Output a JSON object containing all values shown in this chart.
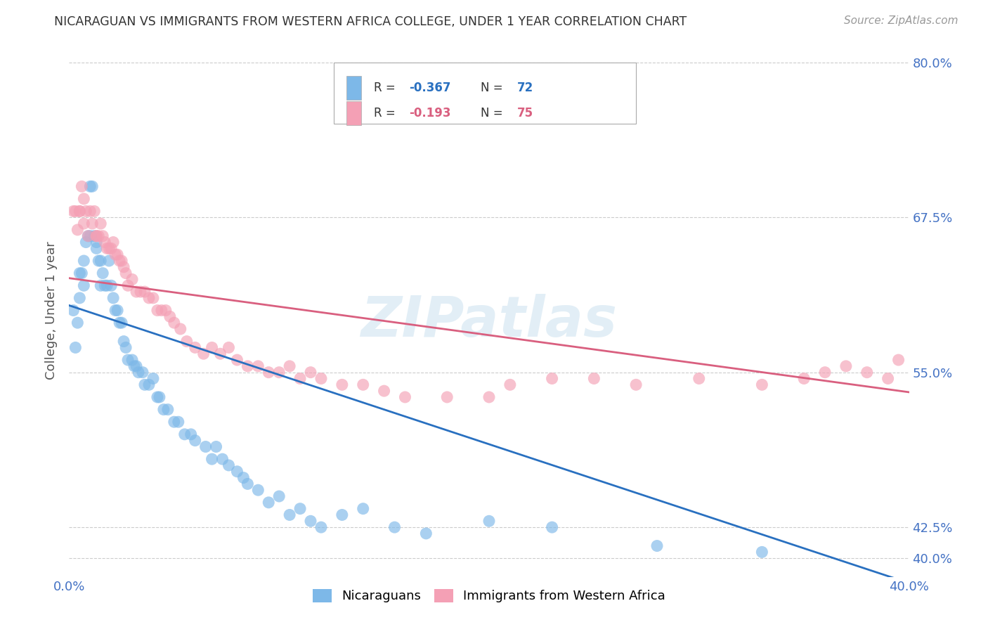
{
  "title": "NICARAGUAN VS IMMIGRANTS FROM WESTERN AFRICA COLLEGE, UNDER 1 YEAR CORRELATION CHART",
  "source": "Source: ZipAtlas.com",
  "ylabel": "College, Under 1 year",
  "xlim": [
    0.0,
    0.4
  ],
  "ylim": [
    0.385,
    0.815
  ],
  "ytick_pos": [
    0.4,
    0.425,
    0.55,
    0.675,
    0.8
  ],
  "ytick_labels": [
    "40.0%",
    "42.5%",
    "55.0%",
    "67.5%",
    "80.0%"
  ],
  "xtick_pos": [
    0.0,
    0.1,
    0.2,
    0.3,
    0.4
  ],
  "xtick_labels": [
    "0.0%",
    "",
    "",
    "",
    "40.0%"
  ],
  "blue_R": -0.367,
  "blue_N": 72,
  "pink_R": -0.193,
  "pink_N": 75,
  "blue_color": "#7db8e8",
  "pink_color": "#f4a0b5",
  "blue_line_color": "#2970c0",
  "pink_line_color": "#d95f7f",
  "legend_blue_label": "Nicaraguans",
  "legend_pink_label": "Immigrants from Western Africa",
  "watermark": "ZIPatlas",
  "background_color": "#ffffff",
  "grid_color": "#cccccc",
  "blue_line_x0": 0.0,
  "blue_line_y0": 0.604,
  "blue_line_x1": 0.4,
  "blue_line_y1": 0.38,
  "pink_line_x0": 0.0,
  "pink_line_y0": 0.626,
  "pink_line_x1": 0.4,
  "pink_line_y1": 0.534,
  "blue_x": [
    0.002,
    0.003,
    0.004,
    0.005,
    0.005,
    0.006,
    0.007,
    0.007,
    0.008,
    0.009,
    0.01,
    0.01,
    0.011,
    0.012,
    0.013,
    0.013,
    0.014,
    0.015,
    0.015,
    0.016,
    0.017,
    0.018,
    0.019,
    0.02,
    0.021,
    0.022,
    0.023,
    0.024,
    0.025,
    0.026,
    0.027,
    0.028,
    0.03,
    0.031,
    0.032,
    0.033,
    0.035,
    0.036,
    0.038,
    0.04,
    0.042,
    0.043,
    0.045,
    0.047,
    0.05,
    0.052,
    0.055,
    0.058,
    0.06,
    0.065,
    0.068,
    0.07,
    0.073,
    0.076,
    0.08,
    0.083,
    0.085,
    0.09,
    0.095,
    0.1,
    0.105,
    0.11,
    0.115,
    0.12,
    0.13,
    0.14,
    0.155,
    0.17,
    0.2,
    0.23,
    0.28,
    0.33
  ],
  "blue_y": [
    0.6,
    0.57,
    0.59,
    0.61,
    0.63,
    0.63,
    0.64,
    0.62,
    0.655,
    0.66,
    0.66,
    0.7,
    0.7,
    0.66,
    0.655,
    0.65,
    0.64,
    0.64,
    0.62,
    0.63,
    0.62,
    0.62,
    0.64,
    0.62,
    0.61,
    0.6,
    0.6,
    0.59,
    0.59,
    0.575,
    0.57,
    0.56,
    0.56,
    0.555,
    0.555,
    0.55,
    0.55,
    0.54,
    0.54,
    0.545,
    0.53,
    0.53,
    0.52,
    0.52,
    0.51,
    0.51,
    0.5,
    0.5,
    0.495,
    0.49,
    0.48,
    0.49,
    0.48,
    0.475,
    0.47,
    0.465,
    0.46,
    0.455,
    0.445,
    0.45,
    0.435,
    0.44,
    0.43,
    0.425,
    0.435,
    0.44,
    0.425,
    0.42,
    0.43,
    0.425,
    0.41,
    0.405
  ],
  "pink_x": [
    0.002,
    0.003,
    0.004,
    0.005,
    0.005,
    0.006,
    0.007,
    0.007,
    0.008,
    0.009,
    0.01,
    0.011,
    0.012,
    0.013,
    0.013,
    0.014,
    0.015,
    0.016,
    0.017,
    0.018,
    0.019,
    0.02,
    0.021,
    0.022,
    0.023,
    0.024,
    0.025,
    0.026,
    0.027,
    0.028,
    0.03,
    0.032,
    0.034,
    0.036,
    0.038,
    0.04,
    0.042,
    0.044,
    0.046,
    0.048,
    0.05,
    0.053,
    0.056,
    0.06,
    0.064,
    0.068,
    0.072,
    0.076,
    0.08,
    0.085,
    0.09,
    0.095,
    0.1,
    0.105,
    0.11,
    0.115,
    0.12,
    0.13,
    0.14,
    0.15,
    0.16,
    0.18,
    0.2,
    0.21,
    0.23,
    0.25,
    0.27,
    0.3,
    0.33,
    0.35,
    0.36,
    0.37,
    0.38,
    0.39,
    0.395
  ],
  "pink_y": [
    0.68,
    0.68,
    0.665,
    0.68,
    0.68,
    0.7,
    0.69,
    0.67,
    0.68,
    0.66,
    0.68,
    0.67,
    0.68,
    0.66,
    0.66,
    0.66,
    0.67,
    0.66,
    0.655,
    0.65,
    0.65,
    0.65,
    0.655,
    0.645,
    0.645,
    0.64,
    0.64,
    0.635,
    0.63,
    0.62,
    0.625,
    0.615,
    0.615,
    0.615,
    0.61,
    0.61,
    0.6,
    0.6,
    0.6,
    0.595,
    0.59,
    0.585,
    0.575,
    0.57,
    0.565,
    0.57,
    0.565,
    0.57,
    0.56,
    0.555,
    0.555,
    0.55,
    0.55,
    0.555,
    0.545,
    0.55,
    0.545,
    0.54,
    0.54,
    0.535,
    0.53,
    0.53,
    0.53,
    0.54,
    0.545,
    0.545,
    0.54,
    0.545,
    0.54,
    0.545,
    0.55,
    0.555,
    0.55,
    0.545,
    0.56
  ]
}
